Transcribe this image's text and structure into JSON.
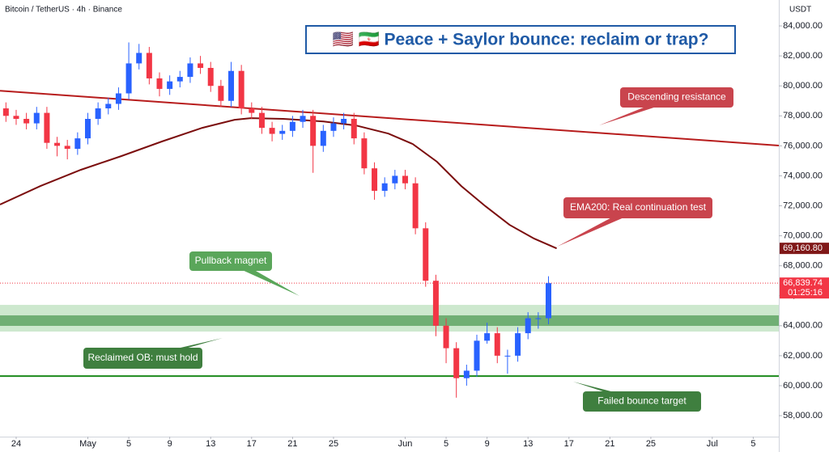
{
  "chart_data": {
    "type": "candlestick",
    "header": "Bitcoin / TetherUS · 4h · Binance",
    "title": "🇺🇸 🇮🇷 Peace + Saylor bounce: reclaim or trap?",
    "currency": "USDT",
    "x": [
      -7,
      -6,
      -5,
      -4,
      -3,
      -2,
      -1,
      0,
      1,
      2,
      3,
      4,
      5,
      6,
      7,
      8,
      9,
      10,
      11,
      12,
      13,
      14,
      15,
      16,
      17,
      18,
      19,
      20,
      21,
      22,
      23,
      24,
      25,
      26,
      27,
      28,
      29,
      30,
      31,
      32,
      33,
      34,
      35,
      36,
      37,
      38,
      39,
      40,
      41,
      42,
      43,
      44,
      45,
      46
    ],
    "open": [
      78500,
      78000,
      77800,
      77500,
      78200,
      76200,
      76000,
      75800,
      76500,
      77800,
      78500,
      78800,
      79500,
      81500,
      82200,
      80500,
      79800,
      80300,
      80600,
      81500,
      81200,
      80000,
      79000,
      81000,
      78500,
      78200,
      77200,
      76800,
      77000,
      77600,
      78000,
      76000,
      77000,
      77500,
      77800,
      76500,
      74500,
      73000,
      73500,
      74000,
      73500,
      70500,
      67000,
      64000,
      62500,
      60500,
      61000,
      63000,
      63500,
      62000,
      62000,
      63500,
      64500,
      64500
    ],
    "high": [
      78900,
      78400,
      78200,
      78600,
      78600,
      76600,
      76400,
      76900,
      78200,
      78900,
      79200,
      79900,
      82900,
      82800,
      82600,
      80900,
      80700,
      81000,
      81900,
      82000,
      81600,
      80400,
      81600,
      81400,
      78900,
      78600,
      77600,
      77400,
      78000,
      78400,
      78400,
      77400,
      77900,
      78200,
      78200,
      76900,
      74900,
      73900,
      74400,
      74400,
      73900,
      70900,
      67400,
      64500,
      62900,
      61400,
      63400,
      64200,
      63900,
      62400,
      63900,
      64900,
      64900,
      67300
    ],
    "low": [
      77600,
      77400,
      77100,
      77100,
      75800,
      75300,
      75100,
      75400,
      76100,
      77400,
      78100,
      78400,
      79100,
      81100,
      80100,
      79300,
      79400,
      79900,
      80200,
      80800,
      79600,
      78600,
      78600,
      78100,
      77800,
      76800,
      76300,
      76400,
      76600,
      77200,
      74200,
      75600,
      76600,
      77100,
      76100,
      74100,
      72400,
      72600,
      73100,
      73100,
      70100,
      66600,
      63300,
      61500,
      59200,
      60000,
      60600,
      62800,
      61500,
      60800,
      61600,
      63100,
      63800,
      64100
    ],
    "close": [
      78000,
      77800,
      77500,
      78200,
      76200,
      76000,
      75800,
      76500,
      77800,
      78500,
      78800,
      79500,
      81500,
      82200,
      80500,
      79800,
      80300,
      80600,
      81500,
      81200,
      80000,
      79000,
      81000,
      78500,
      78200,
      77200,
      76800,
      77000,
      77600,
      78000,
      76000,
      77000,
      77500,
      77800,
      76500,
      74500,
      73000,
      73500,
      74000,
      73500,
      70500,
      67000,
      64000,
      62500,
      60500,
      61000,
      63000,
      63500,
      62000,
      62000,
      63500,
      64500,
      64500,
      66839.74
    ],
    "up_color": "#2962ff",
    "down_color": "#f23645",
    "xlim": [
      -7.58,
      68.5
    ],
    "ylim": [
      56600,
      85730
    ],
    "xticks": [
      {
        "value": -6,
        "label": "24"
      },
      {
        "value": 1,
        "label": "May"
      },
      5,
      9,
      13,
      17,
      21,
      25,
      {
        "value": 32,
        "label": "Jun"
      },
      {
        "value": 36,
        "label": "5"
      },
      {
        "value": 40,
        "label": "9"
      },
      {
        "value": 44,
        "label": "13"
      },
      {
        "value": 48,
        "label": "17"
      },
      {
        "value": 52,
        "label": "21"
      },
      {
        "value": 56,
        "label": "25"
      },
      {
        "value": 62,
        "label": "Jul"
      },
      {
        "value": 66,
        "label": "5"
      }
    ],
    "yticks": [
      {
        "value": 84000,
        "label": "84,000.00"
      },
      {
        "value": 82000,
        "label": "82,000.00"
      },
      {
        "value": 80000,
        "label": "80,000.00"
      },
      {
        "value": 78000,
        "label": "78,000.00"
      },
      {
        "value": 76000,
        "label": "76,000.00"
      },
      {
        "value": 74000,
        "label": "74,000.00"
      },
      {
        "value": 72000,
        "label": "72,000.00"
      },
      {
        "value": 70000,
        "label": "70,000.00"
      },
      {
        "value": 68000,
        "label": "68,000.00"
      },
      {
        "value": 66000,
        "label": "66,000.00"
      },
      {
        "value": 64000,
        "label": "64,000.00"
      },
      {
        "value": 62000,
        "label": "62,000.00"
      },
      {
        "value": 60000,
        "label": "60,000.00"
      },
      {
        "value": 58000,
        "label": "58,000.00"
      }
    ],
    "zones": [
      {
        "ylim": [
          63610,
          65390
        ],
        "color": "#c8e6c9"
      },
      {
        "ylim": [
          63990,
          64690
        ],
        "color": "#66a86a"
      }
    ],
    "lines": [
      {
        "x": [
          -7.58,
          68.5
        ],
        "values": [
          79680,
          76020
        ],
        "color": "#b71c1c"
      },
      {
        "x": [
          -7.58,
          -3.63,
          0.32,
          4.28,
          8.23,
          12.18,
          15.34,
          16.92,
          20.09,
          24.04,
          27.2,
          30.36,
          32.74,
          35.1,
          37.48,
          39.85,
          42.2,
          44.6,
          46.8
        ],
        "values": [
          72080,
          73320,
          74400,
          75320,
          76290,
          77200,
          77740,
          77850,
          77800,
          77630,
          77360,
          76820,
          76120,
          74940,
          73320,
          71970,
          70730,
          69810,
          69160.8
        ],
        "color": "#7b0d0d"
      }
    ],
    "levels": [
      {
        "value": 60640,
        "color": "#1b8a1b"
      }
    ],
    "price_badges": [
      {
        "value": 69160.8,
        "label": "69,160.80",
        "color": "#801818"
      },
      {
        "value": 66839.74,
        "label": "66,839.74",
        "countdown": "01:25:16",
        "color": "#f23645"
      }
    ],
    "annotations": [
      {
        "text": "Descending resistance",
        "color": "#c9444d"
      },
      {
        "text": "EMA200: Real continuation test",
        "color": "#c9444d"
      },
      {
        "text": "Pullback magnet",
        "color": "#5aa65a"
      },
      {
        "text": "Reclaimed OB: must hold",
        "color": "#3f7f3f"
      },
      {
        "text": "Failed bounce target",
        "color": "#3f7f3f"
      }
    ]
  }
}
